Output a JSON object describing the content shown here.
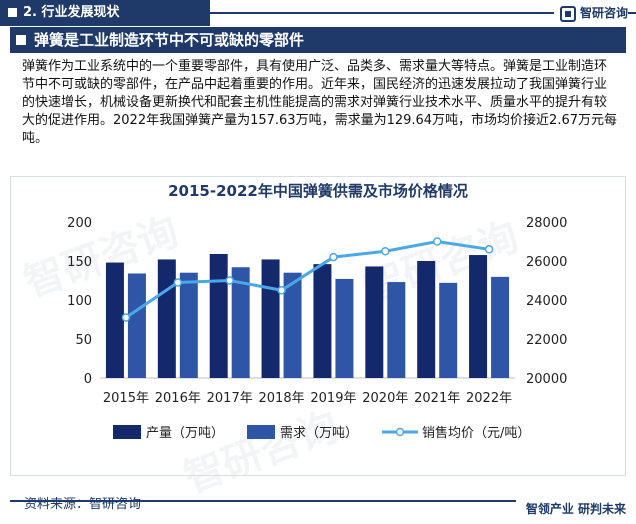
{
  "header": {
    "section_title": "2. 行业发展现状",
    "logo_text": "智研咨询"
  },
  "banner": {
    "title": "弹簧是工业制造环节中不可或缺的零部件"
  },
  "paragraph": "弹簧作为工业系统中的一个重要零部件，具有使用广泛、品类多、需求量大等特点。弹簧是工业制造环节中不可或缺的零部件，在产品中起着重要的作用。近年来，国民经济的迅速发展拉动了我国弹簧行业的快速增长，机械设备更新换代和配套主机性能提高的需求对弹簧行业技术水平、质量水平的提升有较大的促进作用。2022年我国弹簧产量为157.63万吨，需求量为129.64万吨，市场均价接近2.67万元每吨。",
  "footer": {
    "source": "资料来源：智研咨询",
    "slogan": "智领产业 研判未来"
  },
  "colors": {
    "navy": "#1f3a68",
    "production": "#14296b",
    "demand": "#2f56a6",
    "price": "#4aa8e8"
  },
  "chart_data": {
    "type": "bar",
    "title": "2015-2022年中国弹簧供需及市场价格情况",
    "categories": [
      "2015年",
      "2016年",
      "2017年",
      "2018年",
      "2019年",
      "2020年",
      "2021年",
      "2022年"
    ],
    "series": [
      {
        "name": "产量（万吨）",
        "type": "bar",
        "axis": "left",
        "values": [
          148,
          152,
          159,
          152,
          146,
          143,
          150,
          157.63
        ]
      },
      {
        "name": "需求（万吨）",
        "type": "bar",
        "axis": "left",
        "values": [
          134,
          135,
          142,
          135,
          127,
          123,
          122,
          129.64
        ]
      },
      {
        "name": "销售均价（元/吨）",
        "type": "line",
        "axis": "right",
        "values": [
          23100,
          24900,
          25000,
          24500,
          26200,
          26500,
          27000,
          26600
        ]
      }
    ],
    "left_axis": {
      "ylim": [
        0,
        200
      ],
      "ticks": [
        0,
        50,
        100,
        150,
        200
      ]
    },
    "right_axis": {
      "ylim": [
        20000,
        28000
      ],
      "ticks": [
        20000,
        22000,
        24000,
        26000,
        28000
      ]
    },
    "legend_position": "bottom"
  }
}
